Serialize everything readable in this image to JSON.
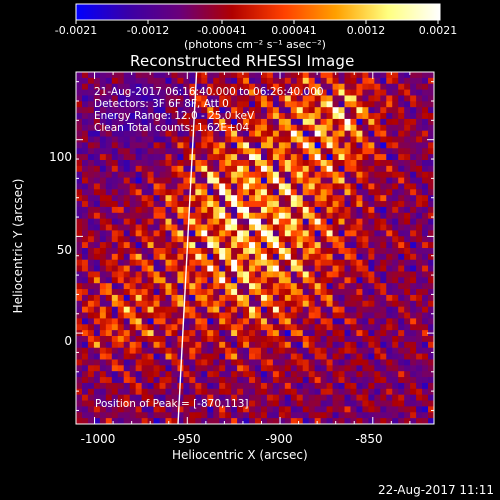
{
  "colorbar": {
    "ticks": [
      "-0.0021",
      "-0.0012",
      "-0.00041",
      "0.00041",
      "0.0012",
      "0.0021"
    ],
    "units": "(photons cm⁻² s⁻¹ asec⁻²)",
    "colormap": [
      "#0000ff",
      "#3a00a8",
      "#6a007a",
      "#b00000",
      "#ff4000",
      "#ffa000",
      "#ffff80",
      "#ffffff"
    ]
  },
  "title": "Reconstructed RHESSI Image",
  "annotations": {
    "line1": "21-Aug-2017 06:16:40.000 to 06:26:40.000",
    "line2": "Detectors: 3F 6F 8F, Att 0",
    "line3": "Energy Range: 12.0 - 25.0 keV",
    "line4": "Clean    Total counts: 1.62E+04",
    "peak": "Position of Peak = [-870,113]"
  },
  "axes": {
    "xlabel": "Heliocentric X (arcsec)",
    "ylabel": "Heliocentric Y (arcsec)",
    "xticks": [
      "-1000",
      "-950",
      "-900",
      "-850"
    ],
    "yticks": [
      "100",
      "50",
      "0"
    ],
    "xrange": [
      -1010,
      -817
    ],
    "yrange": [
      -47,
      135
    ]
  },
  "timestamp": "22-Aug-2017 11:11",
  "chart_data": {
    "type": "heatmap",
    "title": "Reconstructed RHESSI Image",
    "xlabel": "Heliocentric X (arcsec)",
    "ylabel": "Heliocentric Y (arcsec)",
    "xlim": [
      -1010,
      -817
    ],
    "ylim": [
      -47,
      135
    ],
    "value_range": [
      -0.0021,
      0.0021
    ],
    "peak": [
      -870,
      113
    ],
    "limb_line": [
      [
        -945,
        135
      ],
      [
        -955,
        -47
      ]
    ]
  }
}
